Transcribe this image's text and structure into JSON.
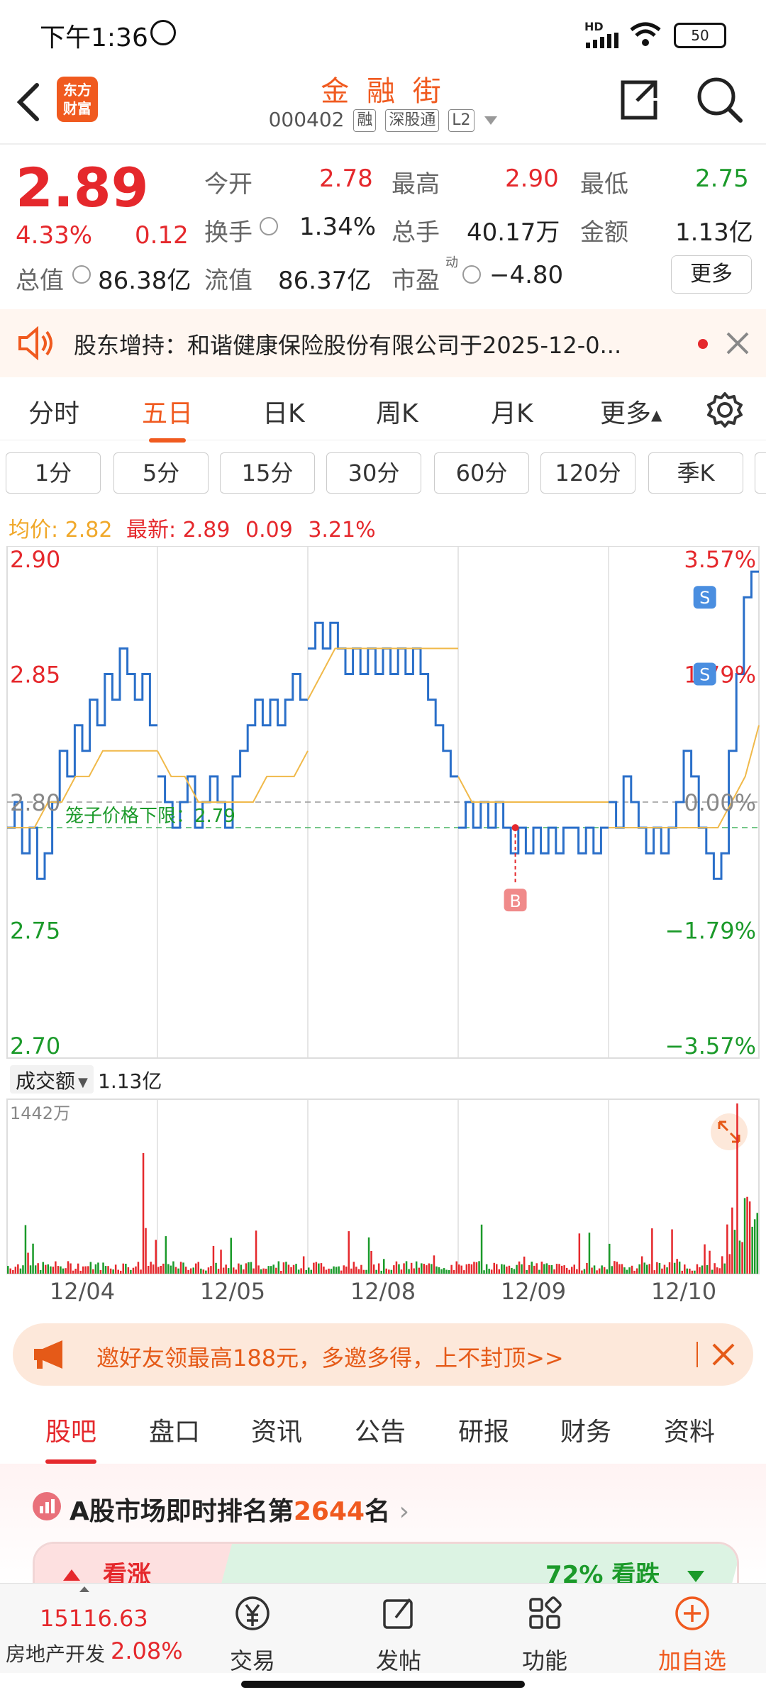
{
  "status_bar": {
    "time": "下午1:36",
    "battery": "50",
    "network": "HD"
  },
  "header": {
    "logo_line1": "东方",
    "logo_line2": "财富",
    "title": "金 融 街",
    "code": "000402",
    "tags": [
      "融",
      "深股通",
      "L2"
    ]
  },
  "quote": {
    "price": "2.89",
    "change_pct": "4.33%",
    "change": "0.12",
    "open_label": "今开",
    "open": "2.78",
    "high_label": "最高",
    "high": "2.90",
    "low_label": "最低",
    "low": "2.75",
    "turnover_label": "换手",
    "turnover": "1.34%",
    "volume_label": "总手",
    "volume": "40.17万",
    "amount_label": "金额",
    "amount": "1.13亿",
    "mktcap_label": "总值",
    "mktcap": "86.38亿",
    "float_label": "流值",
    "float": "86.37亿",
    "pe_label": "市盈",
    "pe_sup": "动",
    "pe": "−4.80",
    "more": "更多"
  },
  "notice": {
    "text": "股东增持：和谐健康保险股份有限公司于2025-12-0..."
  },
  "period_tabs": [
    "分时",
    "五日",
    "日K",
    "周K",
    "月K",
    "更多"
  ],
  "active_period": "五日",
  "minute_buttons": [
    "1分",
    "5分",
    "15分",
    "30分",
    "60分",
    "120分",
    "季K"
  ],
  "info_line": {
    "avg_label": "均价:",
    "avg": "2.82",
    "latest_label": "最新:",
    "latest": "2.89",
    "chg": "0.09",
    "chg_pct": "3.21%"
  },
  "chart_data": {
    "type": "line",
    "price_axis": [
      "2.90",
      "2.85",
      "2.80",
      "2.75",
      "2.70"
    ],
    "pct_axis": [
      "3.57%",
      "1.79%",
      "0.00%",
      "−1.79%",
      "−3.57%"
    ],
    "ylim": [
      2.7,
      2.9
    ],
    "cage_label": "笼子价格下限：2.79",
    "cage_value": 2.79,
    "days": [
      "12/04",
      "12/05",
      "12/08",
      "12/09",
      "12/10"
    ],
    "price_series": [
      [
        2.79,
        2.8,
        2.78,
        2.79,
        2.77,
        2.78,
        2.8,
        2.82,
        2.81,
        2.83,
        2.82,
        2.84,
        2.83,
        2.85,
        2.84,
        2.86,
        2.85,
        2.84,
        2.85,
        2.83
      ],
      [
        2.81,
        2.8,
        2.79,
        2.8,
        2.81,
        2.79,
        2.8,
        2.81,
        2.8,
        2.79,
        2.81,
        2.82,
        2.83,
        2.84,
        2.83,
        2.84,
        2.83,
        2.84,
        2.85,
        2.84
      ],
      [
        2.86,
        2.87,
        2.86,
        2.87,
        2.86,
        2.85,
        2.86,
        2.85,
        2.86,
        2.85,
        2.86,
        2.85,
        2.86,
        2.85,
        2.86,
        2.85,
        2.84,
        2.83,
        2.82,
        2.81
      ],
      [
        2.79,
        2.8,
        2.79,
        2.8,
        2.79,
        2.8,
        2.79,
        2.78,
        2.79,
        2.78,
        2.79,
        2.78,
        2.79,
        2.78,
        2.79,
        2.79,
        2.78,
        2.79,
        2.78,
        2.79
      ],
      [
        2.8,
        2.79,
        2.81,
        2.8,
        2.79,
        2.78,
        2.79,
        2.78,
        2.79,
        2.8,
        2.82,
        2.81,
        2.79,
        2.78,
        2.77,
        2.78,
        2.82,
        2.85,
        2.88,
        2.89
      ]
    ],
    "avg_series": [
      [
        2.79,
        2.79,
        2.79,
        2.8,
        2.8,
        2.81,
        2.81,
        2.82,
        2.82,
        2.82,
        2.82,
        2.82
      ],
      [
        2.82,
        2.81,
        2.81,
        2.8,
        2.8,
        2.8,
        2.8,
        2.8,
        2.81,
        2.81,
        2.81,
        2.82
      ],
      [
        2.84,
        2.85,
        2.86,
        2.86,
        2.86,
        2.86,
        2.86,
        2.86,
        2.86,
        2.86,
        2.86,
        2.86
      ],
      [
        2.81,
        2.8,
        2.8,
        2.8,
        2.8,
        2.8,
        2.8,
        2.8,
        2.8,
        2.8,
        2.8,
        2.8
      ],
      [
        2.79,
        2.79,
        2.79,
        2.79,
        2.79,
        2.79,
        2.79,
        2.79,
        2.79,
        2.8,
        2.81,
        2.83
      ]
    ],
    "markers": [
      {
        "label": "B",
        "day": 3,
        "price": 2.79
      },
      {
        "label": "S",
        "day": 4,
        "price": 2.88
      },
      {
        "label": "S",
        "day": 4,
        "price": 2.85
      }
    ],
    "volume_label": "成交额",
    "volume_total": "1.13亿",
    "volume_max_label": "1442万"
  },
  "banner": {
    "text": "邀好友领最高188元，多邀多得，上不封顶>>"
  },
  "sub_tabs": [
    "股吧",
    "盘口",
    "资讯",
    "公告",
    "研报",
    "财务",
    "资料"
  ],
  "active_sub": "股吧",
  "rank": {
    "prefix": "A股市场即时排名第",
    "num": "2644",
    "suffix": "名"
  },
  "vote": {
    "up": "看涨",
    "down": "72% 看跌"
  },
  "bottom_nav": {
    "index_value": "15116.63",
    "index_name": "房地产开发",
    "index_pct": "2.08%",
    "trade": "交易",
    "post": "发帖",
    "func": "功能",
    "add": "加自选"
  },
  "colors": {
    "up": "#e5282c",
    "down": "#1b9a2a",
    "brand": "#f05a1f",
    "price_line": "#2a6fc9",
    "avg_line": "#f0b94a"
  }
}
